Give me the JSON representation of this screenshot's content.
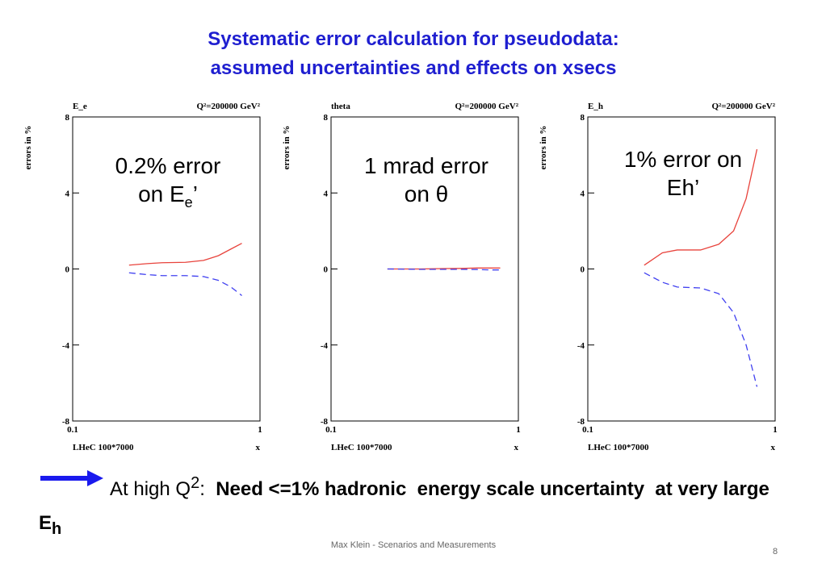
{
  "title": [
    "Systematic error calculation for pseudodata:",
    "assumed uncertainties and effects on xsecs"
  ],
  "chart_data": [
    {
      "type": "line",
      "panel_label": "E_e",
      "q2_label": "Q²=200000 GeV²",
      "ylabel": "errors in %",
      "xlabel": "x",
      "run_label": "LHeC 100*7000",
      "annotation": {
        "line1": "0.2% error",
        "line2": "on E",
        "sub": "e",
        "after": "’"
      },
      "xlog": true,
      "xlim": [
        0.1,
        1
      ],
      "xticks": [
        0.1,
        1
      ],
      "ylim": [
        -8,
        8
      ],
      "yticks": [
        -8,
        -4,
        0,
        4,
        8
      ],
      "x": [
        0.2,
        0.25,
        0.3,
        0.4,
        0.5,
        0.6,
        0.7,
        0.8
      ],
      "series": [
        {
          "color": "#e8433c",
          "style": "solid",
          "values": [
            0.2,
            0.28,
            0.33,
            0.35,
            0.45,
            0.7,
            1.05,
            1.35
          ]
        },
        {
          "color": "#4040f0",
          "style": "dashed",
          "values": [
            -0.2,
            -0.3,
            -0.35,
            -0.35,
            -0.4,
            -0.6,
            -0.95,
            -1.4
          ]
        }
      ]
    },
    {
      "type": "line",
      "panel_label": "theta",
      "q2_label": "Q²=200000 GeV²",
      "ylabel": "errors in %",
      "xlabel": "x",
      "run_label": "LHeC 100*7000",
      "annotation": {
        "line1": "1 mrad error",
        "line2": "on θ"
      },
      "xlog": true,
      "xlim": [
        0.1,
        1
      ],
      "xticks": [
        0.1,
        1
      ],
      "ylim": [
        -8,
        8
      ],
      "yticks": [
        -8,
        -4,
        0,
        4,
        8
      ],
      "x": [
        0.2,
        0.25,
        0.3,
        0.4,
        0.5,
        0.6,
        0.7,
        0.8
      ],
      "series": [
        {
          "color": "#e8433c",
          "style": "solid",
          "values": [
            0,
            0,
            0,
            0.02,
            0.03,
            0.05,
            0.05,
            0.05
          ]
        },
        {
          "color": "#4040f0",
          "style": "dashed",
          "values": [
            0,
            -0.01,
            -0.02,
            -0.02,
            -0.02,
            -0.03,
            -0.05,
            -0.05
          ]
        }
      ]
    },
    {
      "type": "line",
      "panel_label": "E_h",
      "q2_label": "Q²=200000 GeV²",
      "ylabel": "errors in %",
      "xlabel": "x",
      "run_label": "LHeC 100*7000",
      "annotation": {
        "line1": "1% error on",
        "line2": "Eh’"
      },
      "xlog": true,
      "xlim": [
        0.1,
        1
      ],
      "xticks": [
        0.1,
        1
      ],
      "ylim": [
        -8,
        8
      ],
      "yticks": [
        -8,
        -4,
        0,
        4,
        8
      ],
      "x": [
        0.2,
        0.25,
        0.3,
        0.4,
        0.5,
        0.6,
        0.7,
        0.8
      ],
      "series": [
        {
          "color": "#e8433c",
          "style": "solid",
          "values": [
            0.2,
            0.85,
            1.0,
            1.0,
            1.3,
            2.0,
            3.7,
            6.3
          ]
        },
        {
          "color": "#4040f0",
          "style": "dashed",
          "values": [
            -0.2,
            -0.7,
            -0.95,
            -1.0,
            -1.3,
            -2.3,
            -4.0,
            -6.2
          ]
        }
      ]
    }
  ],
  "conclusion": {
    "text": "At high Q",
    "sup": "2",
    "colon": ":",
    "bold": "Need <=1% hadronic  energy scale uncertainty  at very large E",
    "sub": "h"
  },
  "footer": "Max Klein - Scenarios and Measurements",
  "page_number": "8"
}
